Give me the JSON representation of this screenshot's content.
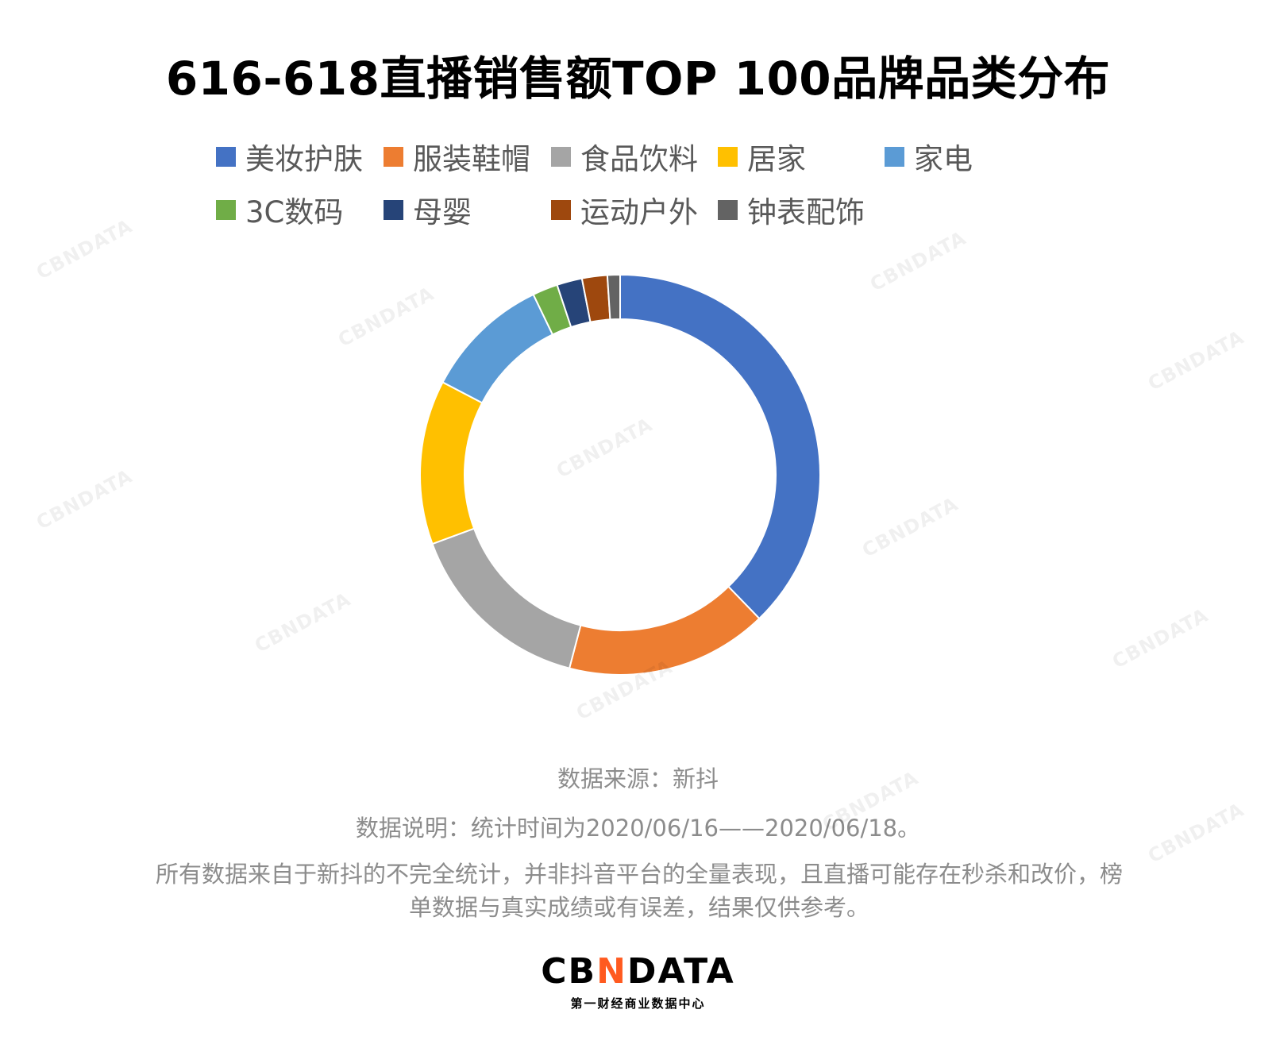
{
  "chart_data": {
    "type": "pie",
    "title": "616-618直播销售额TOP 100品牌品类分布",
    "categories": [
      "美妆护肤",
      "服装鞋帽",
      "食品饮料",
      "居家",
      "家电",
      "3C数码",
      "母婴",
      "运动户外",
      "钟表配饰"
    ],
    "values": [
      37,
      16,
      15,
      13,
      10,
      2,
      2,
      2,
      1
    ],
    "colors": [
      "#4472C4",
      "#ED7D31",
      "#A5A5A5",
      "#FFC000",
      "#5B9BD5",
      "#70AD47",
      "#264478",
      "#9E480E",
      "#636363"
    ],
    "legend_position": "top",
    "style": "doughnut"
  },
  "notes": {
    "source": "数据来源：新抖",
    "description": "数据说明：统计时间为2020/06/16——2020/06/18。",
    "disclaimer_line1": "所有数据来自于新抖的不完全统计，并非抖音平台的全量表现，且直播可能存在秒杀和改价，榜",
    "disclaimer_line2": "单数据与真实成绩或有误差，结果仅供参考。"
  },
  "logo": {
    "text_a": "CB",
    "text_accent": "N",
    "text_b": "DATA",
    "subtitle": "第一财经商业数据中心"
  },
  "watermark": "CBNDATA"
}
